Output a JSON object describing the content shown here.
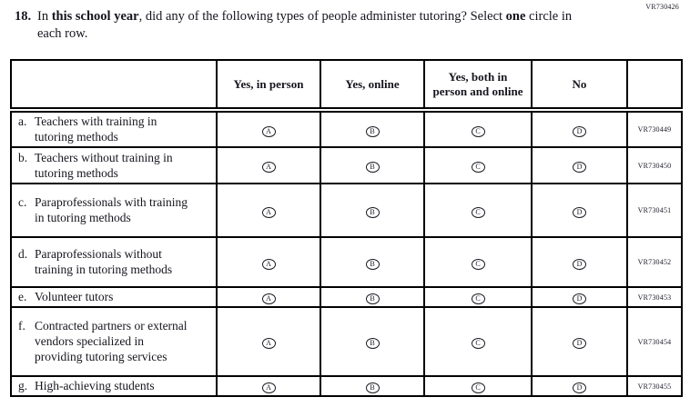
{
  "page_code": "VR730426",
  "question": {
    "number": "18.",
    "segments": [
      "In ",
      "this school year",
      ", did any of the following types of people administer tutoring? Select ",
      "one",
      " circle in each row."
    ]
  },
  "table": {
    "headers": {
      "yes_in_person": "Yes, in person",
      "yes_online": "Yes, online",
      "yes_both": "Yes, both in person and online",
      "no": "No"
    },
    "options": [
      "A",
      "B",
      "C",
      "D"
    ],
    "rows": [
      {
        "letter": "a.",
        "label": "Teachers with training in tutoring methods",
        "code": "VR730449"
      },
      {
        "letter": "b.",
        "label": "Teachers without training in tutoring methods",
        "code": "VR730450"
      },
      {
        "letter": "c.",
        "label": "Paraprofessionals with training in tutoring methods",
        "code": "VR730451"
      },
      {
        "letter": "d.",
        "label": "Paraprofessionals without training in tutoring methods",
        "code": "VR730452"
      },
      {
        "letter": "e.",
        "label": "Volunteer tutors",
        "code": "VR730453"
      },
      {
        "letter": "f.",
        "label": "Contracted partners or external vendors specialized in providing tutoring services",
        "code": "VR730454"
      },
      {
        "letter": "g.",
        "label": "High-achieving students",
        "code": "VR730455"
      }
    ]
  }
}
